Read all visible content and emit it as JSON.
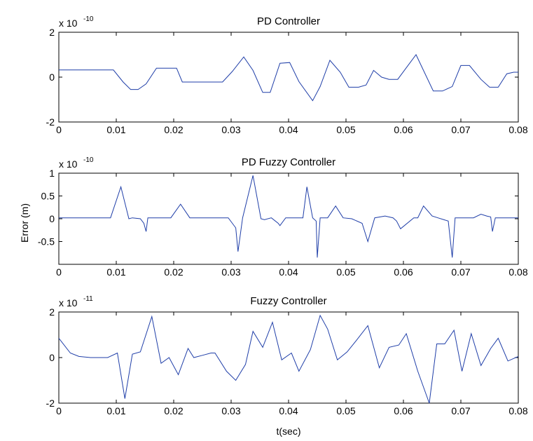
{
  "figure": {
    "ylabel": "Error (m)",
    "xlabel": "t(sec)"
  },
  "chart_data": [
    {
      "type": "line",
      "title": "PD Controller",
      "xlabel": "",
      "ylabel": "",
      "y_multiplier_base": "x 10",
      "y_multiplier_exp": "-10",
      "xlim": [
        0,
        0.08
      ],
      "ylim": [
        -2,
        2
      ],
      "xticks": [
        0,
        0.01,
        0.02,
        0.03,
        0.04,
        0.05,
        0.06,
        0.07,
        0.08
      ],
      "xtick_labels": [
        "0",
        "0.01",
        "0.02",
        "0.03",
        "0.04",
        "0.05",
        "0.06",
        "0.07",
        "0.08"
      ],
      "yticks": [
        -2,
        0,
        2
      ],
      "ytick_labels": [
        "-2",
        "0",
        "2"
      ],
      "grid": false,
      "line_color": "#1f3ea8",
      "x": [
        0,
        0.0095,
        0.0112,
        0.0125,
        0.0138,
        0.0152,
        0.017,
        0.0205,
        0.0215,
        0.0285,
        0.0302,
        0.0322,
        0.0338,
        0.0355,
        0.0368,
        0.0385,
        0.0402,
        0.0418,
        0.0442,
        0.0455,
        0.0472,
        0.049,
        0.0505,
        0.0522,
        0.0535,
        0.0548,
        0.0562,
        0.0575,
        0.059,
        0.0622,
        0.0652,
        0.0668,
        0.0685,
        0.07,
        0.0715,
        0.0735,
        0.075,
        0.0765,
        0.078,
        0.0792,
        0.08
      ],
      "y": [
        0.32,
        0.32,
        -0.22,
        -0.55,
        -0.55,
        -0.3,
        0.4,
        0.4,
        -0.22,
        -0.22,
        0.25,
        0.9,
        0.3,
        -0.68,
        -0.68,
        0.62,
        0.65,
        -0.2,
        -1.05,
        -0.42,
        0.75,
        0.22,
        -0.45,
        -0.45,
        -0.35,
        0.3,
        0.0,
        -0.1,
        -0.1,
        1.0,
        -0.62,
        -0.62,
        -0.42,
        0.52,
        0.52,
        -0.1,
        -0.45,
        -0.45,
        0.15,
        0.22,
        0.22
      ]
    },
    {
      "type": "line",
      "title": "PD Fuzzy Controller",
      "xlabel": "",
      "ylabel": "",
      "y_multiplier_base": "x 10",
      "y_multiplier_exp": "-10",
      "xlim": [
        0,
        0.08
      ],
      "ylim": [
        -1,
        1
      ],
      "xticks": [
        0,
        0.01,
        0.02,
        0.03,
        0.04,
        0.05,
        0.06,
        0.07,
        0.08
      ],
      "xtick_labels": [
        "0",
        "0.01",
        "0.02",
        "0.03",
        "0.04",
        "0.05",
        "0.06",
        "0.07",
        "0.08"
      ],
      "yticks": [
        -0.5,
        0,
        0.5,
        1
      ],
      "ytick_labels": [
        "-0.5",
        "0",
        "0.5",
        "1"
      ],
      "grid": false,
      "line_color": "#1f3ea8",
      "x": [
        0,
        0.009,
        0.0108,
        0.0122,
        0.0128,
        0.0142,
        0.0148,
        0.0152,
        0.0155,
        0.0195,
        0.0212,
        0.0228,
        0.0235,
        0.0295,
        0.0308,
        0.0312,
        0.032,
        0.0338,
        0.0352,
        0.0358,
        0.037,
        0.0382,
        0.0385,
        0.0395,
        0.0425,
        0.0432,
        0.0442,
        0.0448,
        0.045,
        0.0455,
        0.0468,
        0.0482,
        0.0495,
        0.051,
        0.0528,
        0.0538,
        0.055,
        0.0568,
        0.0582,
        0.0588,
        0.0595,
        0.0618,
        0.0625,
        0.0635,
        0.065,
        0.066,
        0.0678,
        0.0685,
        0.069,
        0.0705,
        0.0722,
        0.0735,
        0.0745,
        0.0752,
        0.0755,
        0.076,
        0.08
      ],
      "y": [
        0.02,
        0.02,
        0.7,
        0.0,
        0.02,
        0.0,
        -0.1,
        -0.28,
        0.02,
        0.02,
        0.32,
        0.02,
        0.02,
        0.02,
        -0.2,
        -0.72,
        0.02,
        0.95,
        0.0,
        -0.02,
        0.02,
        -0.1,
        -0.15,
        0.02,
        0.02,
        0.7,
        0.02,
        -0.05,
        -0.85,
        0.02,
        0.02,
        0.28,
        0.02,
        0.0,
        -0.1,
        -0.5,
        0.02,
        0.06,
        0.02,
        -0.05,
        -0.22,
        0.02,
        0.02,
        0.28,
        0.06,
        0.02,
        -0.05,
        -0.85,
        0.02,
        0.02,
        0.02,
        0.1,
        0.06,
        0.04,
        -0.28,
        0.02,
        0.02
      ]
    },
    {
      "type": "line",
      "title": "Fuzzy Controller",
      "xlabel": "t(sec)",
      "ylabel": "",
      "y_multiplier_base": "x 10",
      "y_multiplier_exp": "-11",
      "xlim": [
        0,
        0.08
      ],
      "ylim": [
        -2,
        2
      ],
      "xticks": [
        0,
        0.01,
        0.02,
        0.03,
        0.04,
        0.05,
        0.06,
        0.07,
        0.08
      ],
      "xtick_labels": [
        "0",
        "0.01",
        "0.02",
        "0.03",
        "0.04",
        "0.05",
        "0.06",
        "0.07",
        "0.08"
      ],
      "yticks": [
        -2,
        0,
        2
      ],
      "ytick_labels": [
        "-2",
        "0",
        "2"
      ],
      "grid": false,
      "line_color": "#1f3ea8",
      "x": [
        0,
        0.002,
        0.0035,
        0.0055,
        0.0085,
        0.0102,
        0.0115,
        0.0128,
        0.0142,
        0.0162,
        0.0178,
        0.0192,
        0.0208,
        0.0225,
        0.0235,
        0.025,
        0.0265,
        0.0272,
        0.0292,
        0.0308,
        0.0325,
        0.0338,
        0.0355,
        0.0372,
        0.0388,
        0.0405,
        0.0418,
        0.0438,
        0.0455,
        0.0468,
        0.0485,
        0.0502,
        0.0518,
        0.0538,
        0.0558,
        0.0575,
        0.0592,
        0.0605,
        0.0625,
        0.0645,
        0.0658,
        0.0672,
        0.0688,
        0.0702,
        0.0718,
        0.0735,
        0.0752,
        0.0765,
        0.0782,
        0.08
      ],
      "y": [
        0.85,
        0.2,
        0.05,
        0.0,
        0.0,
        0.2,
        -1.8,
        0.15,
        0.25,
        1.8,
        -0.25,
        0.0,
        -0.75,
        0.4,
        0.0,
        0.1,
        0.2,
        0.2,
        -0.6,
        -1.0,
        -0.3,
        1.15,
        0.45,
        1.55,
        -0.1,
        0.2,
        -0.6,
        0.35,
        1.85,
        1.25,
        -0.1,
        0.25,
        0.75,
        1.4,
        -0.45,
        0.45,
        0.55,
        1.05,
        -0.6,
        -2.0,
        0.6,
        0.6,
        1.2,
        -0.6,
        1.05,
        -0.35,
        0.4,
        0.85,
        -0.15,
        0.05
      ]
    }
  ]
}
